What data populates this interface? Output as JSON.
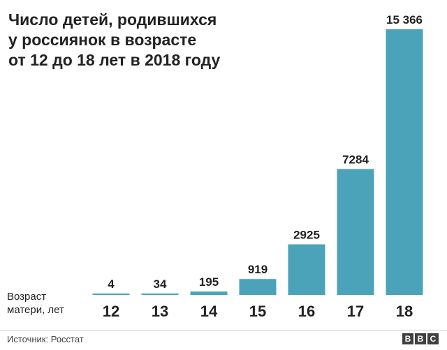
{
  "title_lines": [
    "Число детей, родившихся",
    "у россиянок в возрасте",
    "от 12 до 18 лет в 2018 году"
  ],
  "x_axis_title_lines": [
    "Возраст",
    "матери, лет"
  ],
  "source": "Источник: Росстат",
  "logo": {
    "letters": [
      "B",
      "B",
      "C"
    ],
    "color": "#404040"
  },
  "colors": {
    "bar": "#4aa3b8",
    "text": "#222222"
  },
  "chart_data": {
    "type": "bar",
    "title": "Число детей, родившихся у россиянок в возрасте от 12 до 18 лет в 2018 году",
    "xlabel": "Возраст матери, лет",
    "ylabel": "",
    "categories": [
      "12",
      "13",
      "14",
      "15",
      "16",
      "17",
      "18"
    ],
    "values": [
      4,
      34,
      195,
      919,
      2925,
      7284,
      15366
    ],
    "value_labels": [
      "4",
      "34",
      "195",
      "919",
      "2925",
      "7284",
      "15 366"
    ],
    "ylim": [
      0,
      15366
    ],
    "grid": false,
    "legend": "none"
  }
}
